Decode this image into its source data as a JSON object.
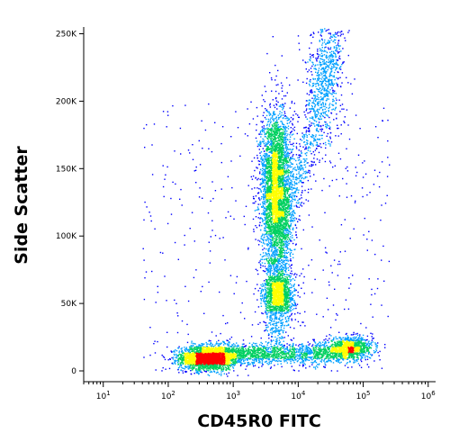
{
  "chart_data": {
    "type": "scatter",
    "style": "flow-cytometry density dot plot (pseudocolor: blue low → green → yellow → red high)",
    "xlabel": "CD45R0 FITC",
    "ylabel": "Side Scatter",
    "x_scale": "log",
    "xlim": [
      5,
      1300000
    ],
    "ylim": [
      -8000,
      255000
    ],
    "x_tick_labels": [
      {
        "value": 10,
        "base": "10",
        "exp": "1"
      },
      {
        "value": 100,
        "base": "10",
        "exp": "2"
      },
      {
        "value": 1000,
        "base": "10",
        "exp": "3"
      },
      {
        "value": 10000,
        "base": "10",
        "exp": "4"
      },
      {
        "value": 100000,
        "base": "10",
        "exp": "5"
      },
      {
        "value": 1000000,
        "base": "10",
        "exp": "6"
      }
    ],
    "y_ticks": [
      {
        "value": 0,
        "label": "0"
      },
      {
        "value": 50000,
        "label": "50K"
      },
      {
        "value": 100000,
        "label": "100K"
      },
      {
        "value": 150000,
        "label": "150K"
      },
      {
        "value": 200000,
        "label": "200K"
      },
      {
        "value": 250000,
        "label": "250K"
      }
    ],
    "grid": false,
    "populations": [
      {
        "name_visible": false,
        "x_center": 400,
        "y_center": 10000,
        "x_spread_log": 0.22,
        "y_spread": 4500,
        "weight": 0.26,
        "peak": "red"
      },
      {
        "name_visible": false,
        "x_center": 60000,
        "y_center": 17000,
        "x_spread_log": 0.18,
        "y_spread": 4000,
        "weight": 0.12,
        "peak": "yellow"
      },
      {
        "name_visible": false,
        "x_center": 4500,
        "y_center": 135000,
        "x_spread_log": 0.12,
        "y_spread": 30000,
        "weight": 0.34,
        "peak": "red"
      },
      {
        "name_visible": false,
        "x_center": 5000,
        "y_center": 57000,
        "x_spread_log": 0.12,
        "y_spread": 8000,
        "weight": 0.12,
        "peak": "yellow"
      },
      {
        "name_visible": false,
        "x_center": 25000,
        "y_center": 215000,
        "x_spread_log": 0.15,
        "y_spread": 25000,
        "weight": 0.06,
        "peak": "blue"
      }
    ],
    "colors": {
      "low": "#0000ff",
      "mid_low": "#00a0ff",
      "mid": "#00d060",
      "mid_high": "#ffff00",
      "high": "#ff0000",
      "axis": "#000000"
    }
  }
}
